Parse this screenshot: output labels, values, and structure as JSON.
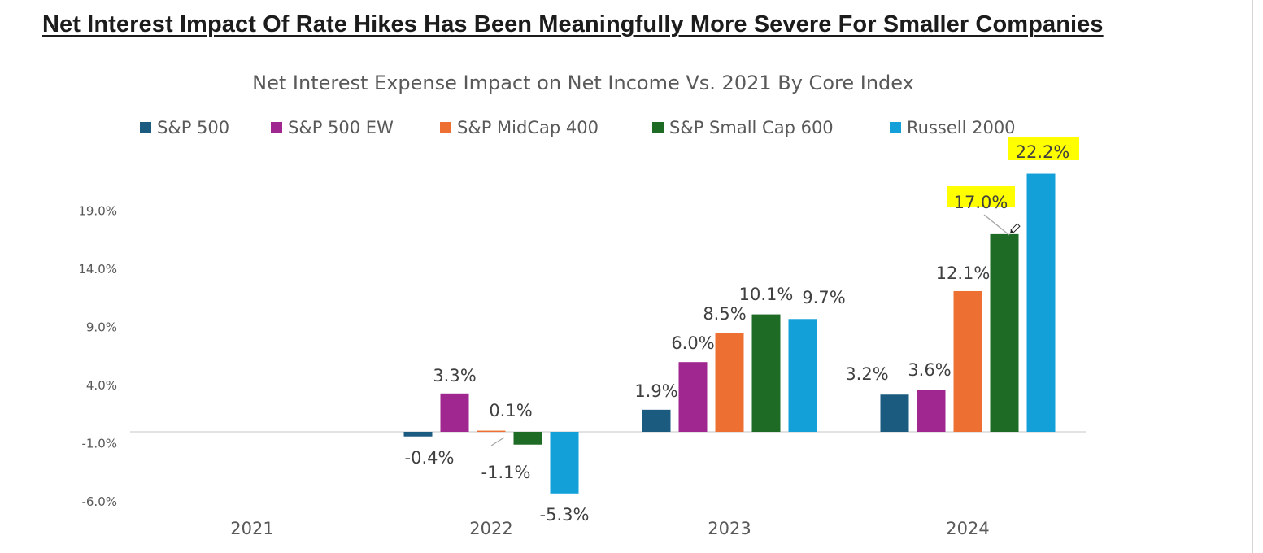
{
  "page": {
    "title": "Net Interest Impact Of Rate Hikes Has Been Meaningfully More Severe For Smaller Companies"
  },
  "chart_data": {
    "type": "bar",
    "title": "Net Interest Expense Impact on Net Income Vs. 2021 By Core Index",
    "xlabel": "",
    "ylabel": "",
    "categories": [
      "2021",
      "2022",
      "2023",
      "2024"
    ],
    "ylim": [
      -6.0,
      22.2
    ],
    "yticks": [
      -6.0,
      -1.0,
      4.0,
      9.0,
      14.0,
      19.0
    ],
    "ytick_labels": [
      "-6.0%",
      "-1.0%",
      "4.0%",
      "9.0%",
      "14.0%",
      "19.0%"
    ],
    "grid": false,
    "legend_position": "top",
    "highlight_color": "#ffff00",
    "series": [
      {
        "name": "S&P 500",
        "color": "#1b5b80",
        "values": [
          null,
          -0.4,
          1.9,
          3.2
        ],
        "labels": [
          "",
          "-0.4%",
          "1.9%",
          "3.2%"
        ]
      },
      {
        "name": "S&P 500 EW",
        "color": "#a0278f",
        "values": [
          null,
          3.3,
          6.0,
          3.6
        ],
        "labels": [
          "",
          "3.3%",
          "6.0%",
          "3.6%"
        ]
      },
      {
        "name": "S&P MidCap 400",
        "color": "#ed7032",
        "values": [
          null,
          0.1,
          8.5,
          12.1
        ],
        "labels": [
          "",
          "0.1%",
          "8.5%",
          "12.1%"
        ]
      },
      {
        "name": "S&P Small Cap 600",
        "color": "#1e6b26",
        "values": [
          null,
          -1.1,
          10.1,
          17.0
        ],
        "labels": [
          "",
          "-1.1%",
          "10.1%",
          "17.0%"
        ]
      },
      {
        "name": "Russell 2000",
        "color": "#13a0d8",
        "values": [
          null,
          -5.3,
          9.7,
          22.2
        ],
        "labels": [
          "",
          "-5.3%",
          "9.7%",
          "22.2%"
        ]
      }
    ],
    "highlighted_labels": [
      "17.0%",
      "22.2%"
    ]
  }
}
